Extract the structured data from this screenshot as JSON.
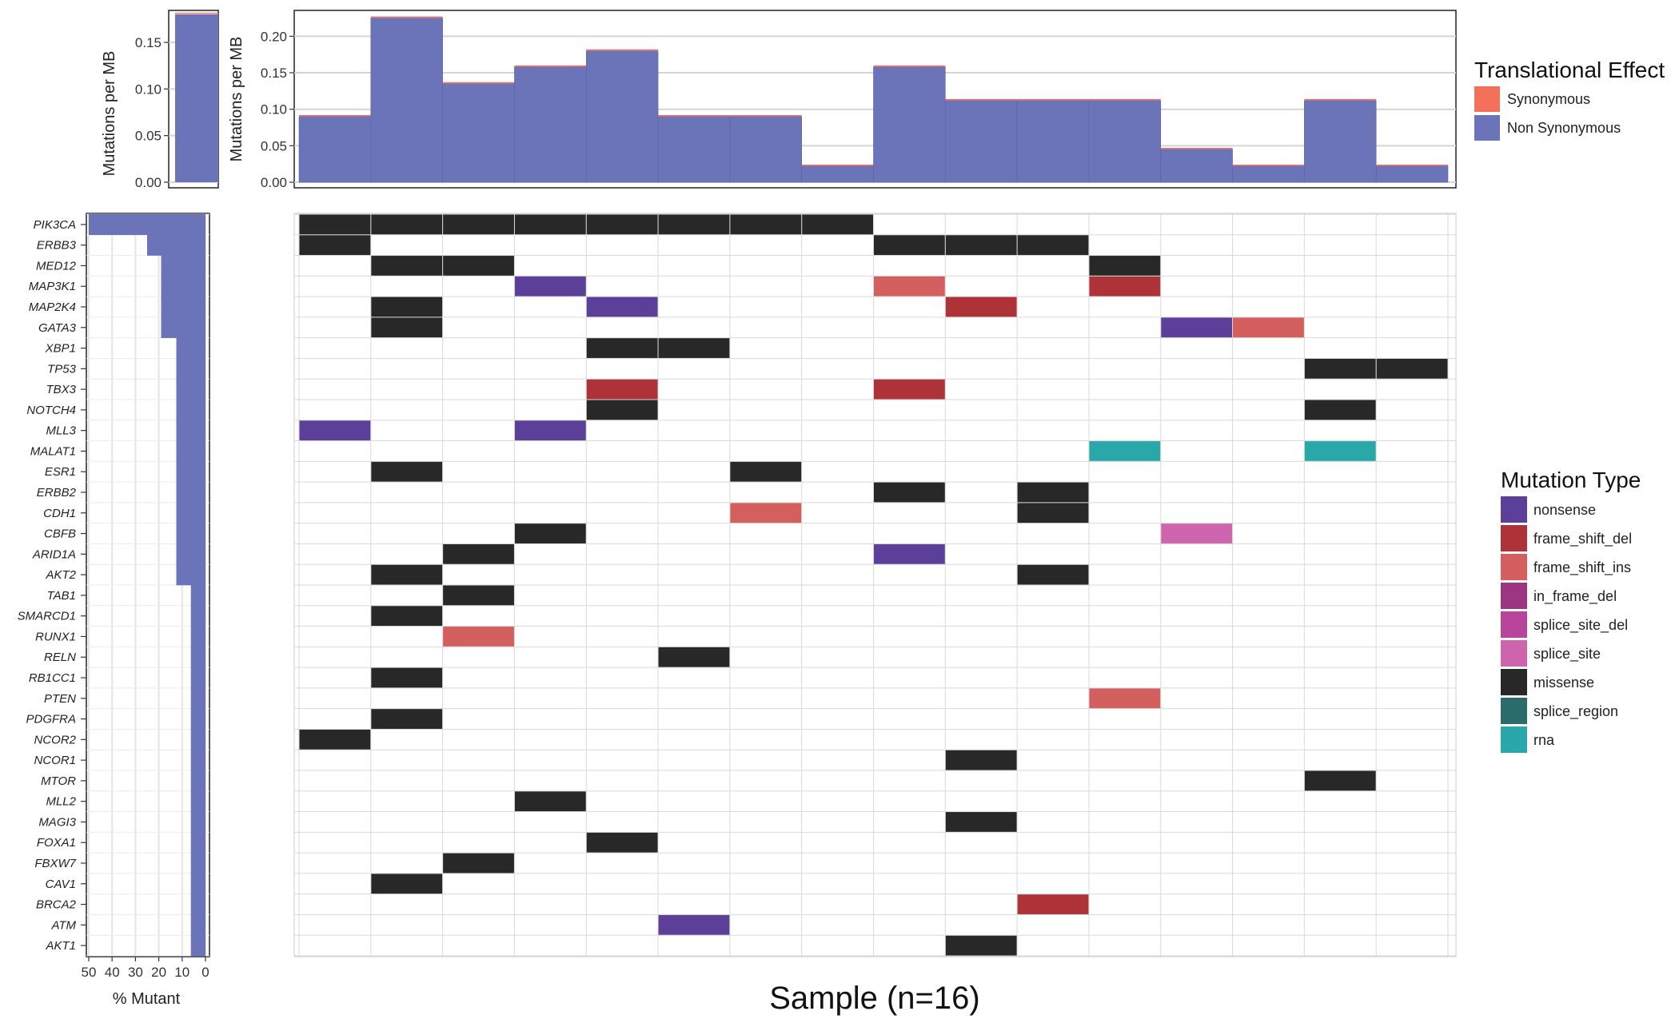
{
  "chart_data": [
    {
      "type": "bar",
      "panel": "cohort-mutation-burden",
      "ylabel": "Mutations per MB",
      "ylim": [
        0,
        0.18
      ],
      "yticks": [
        0.0,
        0.05,
        0.1,
        0.15
      ],
      "ytick_labels": [
        "0.00",
        "0.05",
        "0.10",
        "0.15"
      ],
      "series": [
        {
          "name": "Synonymous",
          "values": [
            0.001
          ]
        },
        {
          "name": "Non Synonymous",
          "values": [
            0.18
          ]
        }
      ]
    },
    {
      "type": "bar",
      "panel": "sample-mutation-burden",
      "ylabel": "Mutations per MB",
      "ylim": [
        0,
        0.23
      ],
      "yticks": [
        0.0,
        0.05,
        0.1,
        0.15,
        0.2
      ],
      "ytick_labels": [
        "0.00",
        "0.05",
        "0.10",
        "0.15",
        "0.20"
      ],
      "series": [
        {
          "name": "Synonymous",
          "values": [
            0.001,
            0.001,
            0.001,
            0.001,
            0.001,
            0.001,
            0.001,
            0.001,
            0.001,
            0.001,
            0.001,
            0.001,
            0.001,
            0.001,
            0.001,
            0.001
          ]
        },
        {
          "name": "Non Synonymous",
          "values": [
            0.09,
            0.225,
            0.135,
            0.158,
            0.18,
            0.09,
            0.09,
            0.022,
            0.158,
            0.112,
            0.112,
            0.112,
            0.045,
            0.022,
            0.112,
            0.022
          ]
        }
      ]
    },
    {
      "type": "bar",
      "panel": "percent-mutant",
      "orientation": "horizontal-reversed",
      "xlabel": "% Mutant",
      "xlim": [
        50,
        0
      ],
      "xticks": [
        50,
        40,
        30,
        20,
        10,
        0
      ],
      "xtick_labels": [
        "50",
        "40",
        "30",
        "20",
        "10",
        "0"
      ],
      "values": [
        50,
        25,
        19,
        19,
        19,
        19,
        12.5,
        12.5,
        12.5,
        12.5,
        12.5,
        12.5,
        12.5,
        12.5,
        12.5,
        12.5,
        12.5,
        12.5,
        6.25,
        6.25,
        6.25,
        6.25,
        6.25,
        6.25,
        6.25,
        6.25,
        6.25,
        6.25,
        6.25,
        6.25,
        6.25,
        6.25,
        6.25,
        6.25,
        6.25,
        6.25
      ]
    },
    {
      "type": "heatmap",
      "panel": "mutation-waterfall",
      "xlabel": "Sample (n=16)",
      "n_samples": 16,
      "genes": [
        "PIK3CA",
        "ERBB3",
        "MED12",
        "MAP3K1",
        "MAP2K4",
        "GATA3",
        "XBP1",
        "TP53",
        "TBX3",
        "NOTCH4",
        "MLL3",
        "MALAT1",
        "ESR1",
        "ERBB2",
        "CDH1",
        "CBFB",
        "ARID1A",
        "AKT2",
        "TAB1",
        "SMARCD1",
        "RUNX1",
        "RELN",
        "RB1CC1",
        "PTEN",
        "PDGFRA",
        "NCOR2",
        "NCOR1",
        "MTOR",
        "MLL2",
        "MAGI3",
        "FOXA1",
        "FBXW7",
        "CAV1",
        "BRCA2",
        "ATM",
        "AKT1"
      ],
      "cells": [
        {
          "gene": "PIK3CA",
          "sample": 1,
          "type": "missense"
        },
        {
          "gene": "PIK3CA",
          "sample": 2,
          "type": "missense"
        },
        {
          "gene": "PIK3CA",
          "sample": 3,
          "type": "missense"
        },
        {
          "gene": "PIK3CA",
          "sample": 4,
          "type": "missense"
        },
        {
          "gene": "PIK3CA",
          "sample": 5,
          "type": "missense"
        },
        {
          "gene": "PIK3CA",
          "sample": 6,
          "type": "missense"
        },
        {
          "gene": "PIK3CA",
          "sample": 7,
          "type": "missense"
        },
        {
          "gene": "PIK3CA",
          "sample": 8,
          "type": "missense"
        },
        {
          "gene": "ERBB3",
          "sample": 1,
          "type": "missense"
        },
        {
          "gene": "ERBB3",
          "sample": 9,
          "type": "missense"
        },
        {
          "gene": "ERBB3",
          "sample": 10,
          "type": "missense"
        },
        {
          "gene": "ERBB3",
          "sample": 11,
          "type": "missense"
        },
        {
          "gene": "MED12",
          "sample": 2,
          "type": "missense"
        },
        {
          "gene": "MED12",
          "sample": 3,
          "type": "missense"
        },
        {
          "gene": "MED12",
          "sample": 12,
          "type": "missense"
        },
        {
          "gene": "MAP3K1",
          "sample": 4,
          "type": "nonsense"
        },
        {
          "gene": "MAP3K1",
          "sample": 9,
          "type": "frame_shift_ins"
        },
        {
          "gene": "MAP3K1",
          "sample": 12,
          "type": "frame_shift_del"
        },
        {
          "gene": "MAP2K4",
          "sample": 2,
          "type": "missense"
        },
        {
          "gene": "MAP2K4",
          "sample": 5,
          "type": "nonsense"
        },
        {
          "gene": "MAP2K4",
          "sample": 10,
          "type": "frame_shift_del"
        },
        {
          "gene": "GATA3",
          "sample": 2,
          "type": "missense"
        },
        {
          "gene": "GATA3",
          "sample": 13,
          "type": "nonsense"
        },
        {
          "gene": "GATA3",
          "sample": 14,
          "type": "frame_shift_ins"
        },
        {
          "gene": "XBP1",
          "sample": 5,
          "type": "missense"
        },
        {
          "gene": "XBP1",
          "sample": 6,
          "type": "missense"
        },
        {
          "gene": "TP53",
          "sample": 15,
          "type": "missense"
        },
        {
          "gene": "TP53",
          "sample": 16,
          "type": "missense"
        },
        {
          "gene": "TBX3",
          "sample": 5,
          "type": "frame_shift_del"
        },
        {
          "gene": "TBX3",
          "sample": 9,
          "type": "frame_shift_del"
        },
        {
          "gene": "NOTCH4",
          "sample": 5,
          "type": "missense"
        },
        {
          "gene": "NOTCH4",
          "sample": 15,
          "type": "missense"
        },
        {
          "gene": "MLL3",
          "sample": 1,
          "type": "nonsense"
        },
        {
          "gene": "MLL3",
          "sample": 4,
          "type": "nonsense"
        },
        {
          "gene": "MALAT1",
          "sample": 12,
          "type": "rna"
        },
        {
          "gene": "MALAT1",
          "sample": 15,
          "type": "rna"
        },
        {
          "gene": "ESR1",
          "sample": 2,
          "type": "missense"
        },
        {
          "gene": "ESR1",
          "sample": 7,
          "type": "missense"
        },
        {
          "gene": "ERBB2",
          "sample": 9,
          "type": "missense"
        },
        {
          "gene": "ERBB2",
          "sample": 11,
          "type": "missense"
        },
        {
          "gene": "CDH1",
          "sample": 7,
          "type": "frame_shift_ins"
        },
        {
          "gene": "CDH1",
          "sample": 11,
          "type": "missense"
        },
        {
          "gene": "CBFB",
          "sample": 4,
          "type": "missense"
        },
        {
          "gene": "CBFB",
          "sample": 13,
          "type": "splice_site"
        },
        {
          "gene": "ARID1A",
          "sample": 3,
          "type": "missense"
        },
        {
          "gene": "ARID1A",
          "sample": 9,
          "type": "nonsense"
        },
        {
          "gene": "AKT2",
          "sample": 2,
          "type": "missense"
        },
        {
          "gene": "AKT2",
          "sample": 11,
          "type": "missense"
        },
        {
          "gene": "TAB1",
          "sample": 3,
          "type": "missense"
        },
        {
          "gene": "SMARCD1",
          "sample": 2,
          "type": "missense"
        },
        {
          "gene": "RUNX1",
          "sample": 3,
          "type": "frame_shift_ins"
        },
        {
          "gene": "RELN",
          "sample": 6,
          "type": "missense"
        },
        {
          "gene": "RB1CC1",
          "sample": 2,
          "type": "missense"
        },
        {
          "gene": "PTEN",
          "sample": 12,
          "type": "frame_shift_ins"
        },
        {
          "gene": "PDGFRA",
          "sample": 2,
          "type": "missense"
        },
        {
          "gene": "NCOR2",
          "sample": 1,
          "type": "missense"
        },
        {
          "gene": "NCOR1",
          "sample": 10,
          "type": "missense"
        },
        {
          "gene": "MTOR",
          "sample": 15,
          "type": "missense"
        },
        {
          "gene": "MLL2",
          "sample": 4,
          "type": "missense"
        },
        {
          "gene": "MAGI3",
          "sample": 10,
          "type": "missense"
        },
        {
          "gene": "FOXA1",
          "sample": 5,
          "type": "missense"
        },
        {
          "gene": "FBXW7",
          "sample": 3,
          "type": "missense"
        },
        {
          "gene": "CAV1",
          "sample": 2,
          "type": "missense"
        },
        {
          "gene": "BRCA2",
          "sample": 11,
          "type": "frame_shift_del"
        },
        {
          "gene": "ATM",
          "sample": 6,
          "type": "nonsense"
        },
        {
          "gene": "AKT1",
          "sample": 10,
          "type": "missense"
        }
      ]
    }
  ],
  "legends": {
    "translational_effect": {
      "title": "Translational Effect",
      "items": [
        {
          "label": "Synonymous",
          "color": "#f3705a"
        },
        {
          "label": "Non Synonymous",
          "color": "#6b74b8"
        }
      ]
    },
    "mutation_type": {
      "title": "Mutation Type",
      "items": [
        {
          "label": "nonsense",
          "color": "#5c3f99"
        },
        {
          "label": "frame_shift_del",
          "color": "#ad3338"
        },
        {
          "label": "frame_shift_ins",
          "color": "#d45f5f"
        },
        {
          "label": "in_frame_del",
          "color": "#9c3681"
        },
        {
          "label": "splice_site_del",
          "color": "#b8449b"
        },
        {
          "label": "splice_site",
          "color": "#cd64ad"
        },
        {
          "label": "missense",
          "color": "#282828"
        },
        {
          "label": "splice_region",
          "color": "#2a6b6b"
        },
        {
          "label": "rna",
          "color": "#2aa7a8"
        }
      ]
    }
  }
}
